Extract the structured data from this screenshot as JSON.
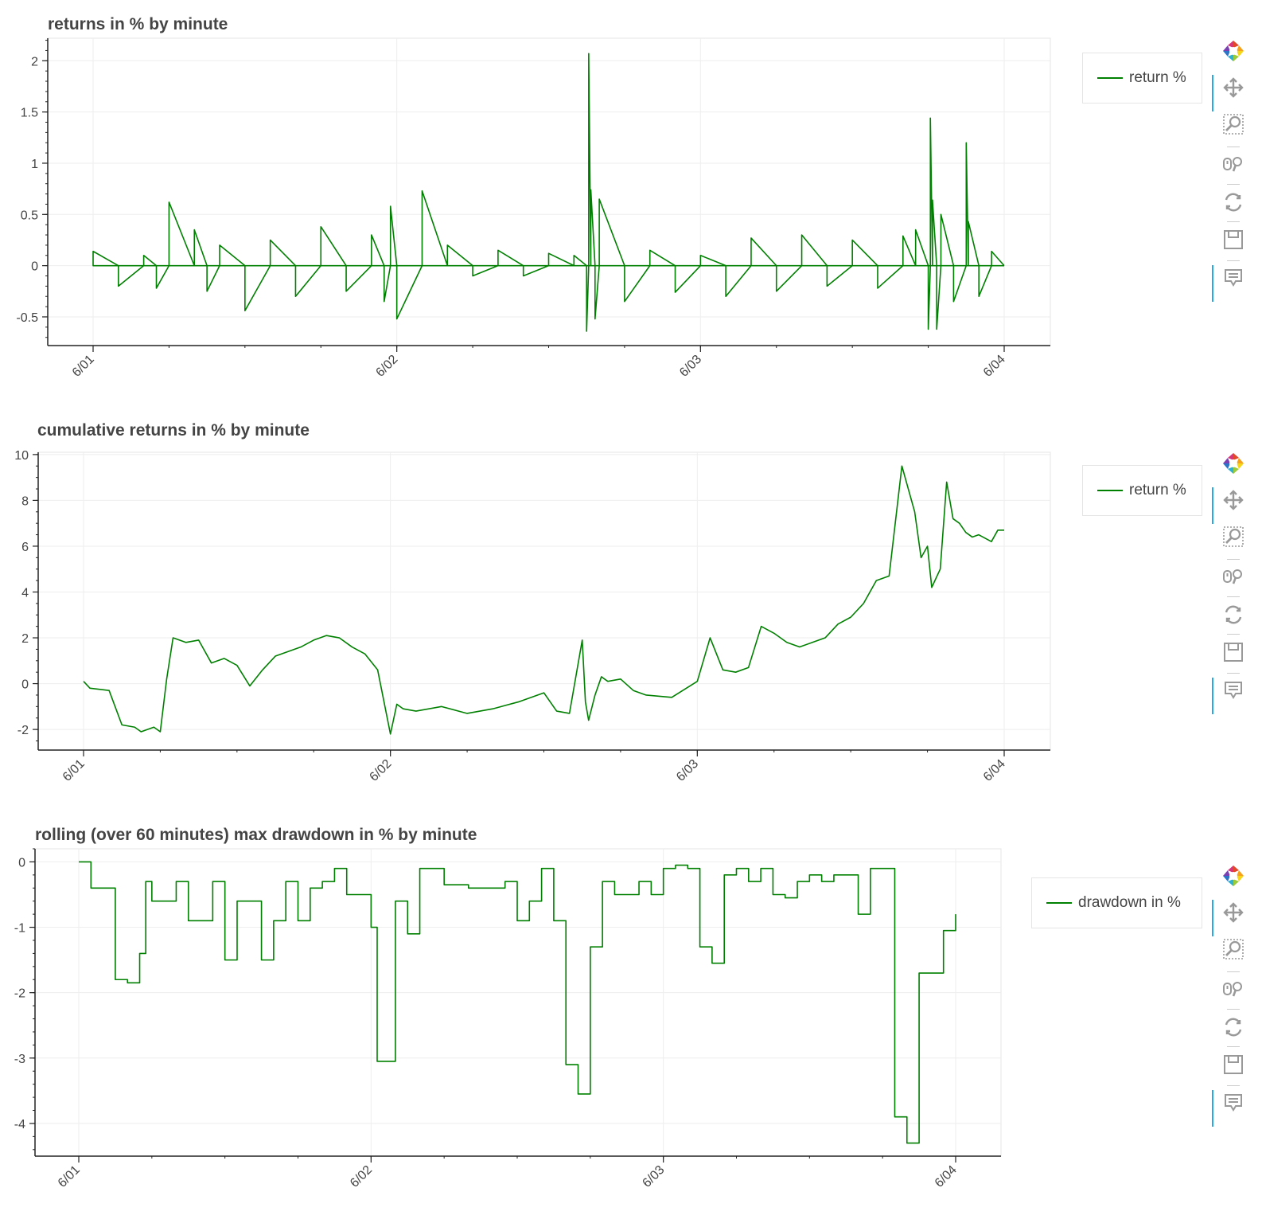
{
  "chart_data": [
    {
      "type": "line",
      "title": "returns in % by minute",
      "xlabel": "",
      "ylabel": "",
      "x_ticks": [
        "6/01",
        "6/02",
        "6/03",
        "6/04"
      ],
      "y_ticks": [
        "2",
        "1.5",
        "1",
        "0.5",
        "0",
        "-0.5"
      ],
      "xlim": [
        "6/01 00:00",
        "6/04 00:00"
      ],
      "ylim": [
        -0.78,
        2.22
      ],
      "grid": true,
      "legend_position": "right",
      "series": [
        {
          "name": "return %",
          "color": "#008000",
          "x": [
            "6/01 00:00",
            "6/01 02:00",
            "6/01 04:00",
            "6/01 05:00",
            "6/01 06:00",
            "6/01 08:00",
            "6/01 09:00",
            "6/01 10:00",
            "6/01 12:00",
            "6/01 14:00",
            "6/01 16:00",
            "6/01 18:00",
            "6/01 20:00",
            "6/01 22:00",
            "6/01 23:00",
            "6/01 23:30",
            "6/02 00:00",
            "6/02 02:00",
            "6/02 04:00",
            "6/02 06:00",
            "6/02 08:00",
            "6/02 10:00",
            "6/02 12:00",
            "6/02 14:00",
            "6/02 15:00",
            "6/02 15:10",
            "6/02 15:20",
            "6/02 15:40",
            "6/02 16:00",
            "6/02 18:00",
            "6/02 20:00",
            "6/02 22:00",
            "6/03 00:00",
            "6/03 02:00",
            "6/03 04:00",
            "6/03 06:00",
            "6/03 08:00",
            "6/03 10:00",
            "6/03 12:00",
            "6/03 14:00",
            "6/03 16:00",
            "6/03 17:00",
            "6/03 18:00",
            "6/03 18:10",
            "6/03 18:20",
            "6/03 18:40",
            "6/03 19:00",
            "6/03 20:00",
            "6/03 21:00",
            "6/03 21:10",
            "6/03 22:00",
            "6/03 23:00",
            "6/04 00:00"
          ],
          "values": [
            0.14,
            -0.2,
            0.1,
            -0.22,
            0.62,
            0.35,
            -0.25,
            0.2,
            -0.44,
            0.25,
            -0.3,
            0.38,
            -0.25,
            0.3,
            -0.35,
            0.58,
            -0.52,
            0.73,
            0.2,
            -0.1,
            0.15,
            -0.1,
            0.12,
            0.1,
            -0.64,
            2.07,
            0.74,
            -0.52,
            0.65,
            -0.35,
            0.15,
            -0.26,
            0.1,
            -0.3,
            0.27,
            -0.25,
            0.3,
            -0.2,
            0.25,
            -0.22,
            0.29,
            0.35,
            -0.62,
            1.44,
            0.64,
            -0.62,
            0.5,
            -0.35,
            1.2,
            0.43,
            -0.3,
            0.14,
            0.0
          ]
        }
      ]
    },
    {
      "type": "line",
      "title": "cumulative returns in % by minute",
      "xlabel": "",
      "ylabel": "",
      "x_ticks": [
        "6/01",
        "6/02",
        "6/03",
        "6/04"
      ],
      "y_ticks": [
        "10",
        "8",
        "6",
        "4",
        "2",
        "0",
        "-2"
      ],
      "xlim": [
        "6/01 00:00",
        "6/04 00:00"
      ],
      "ylim": [
        -2.9,
        10.1
      ],
      "grid": true,
      "legend_position": "right",
      "series": [
        {
          "name": "return %",
          "color": "#008000",
          "x": [
            "6/01 00:00",
            "6/01 00:30",
            "6/01 02:00",
            "6/01 03:00",
            "6/01 04:00",
            "6/01 04:30",
            "6/01 05:30",
            "6/01 06:00",
            "6/01 06:30",
            "6/01 07:00",
            "6/01 08:00",
            "6/01 09:00",
            "6/01 10:00",
            "6/01 11:00",
            "6/01 12:00",
            "6/01 13:00",
            "6/01 14:00",
            "6/01 15:00",
            "6/01 16:00",
            "6/01 17:00",
            "6/01 18:00",
            "6/01 19:00",
            "6/01 20:00",
            "6/01 21:00",
            "6/01 22:00",
            "6/01 23:00",
            "6/01 23:30",
            "6/02 00:00",
            "6/02 00:30",
            "6/02 01:00",
            "6/02 02:00",
            "6/02 04:00",
            "6/02 06:00",
            "6/02 08:00",
            "6/02 10:00",
            "6/02 12:00",
            "6/02 13:00",
            "6/02 14:00",
            "6/02 15:00",
            "6/02 15:15",
            "6/02 15:30",
            "6/02 16:00",
            "6/02 16:30",
            "6/02 17:00",
            "6/02 18:00",
            "6/02 19:00",
            "6/02 20:00",
            "6/02 22:00",
            "6/03 00:00",
            "6/03 01:00",
            "6/03 02:00",
            "6/03 03:00",
            "6/03 04:00",
            "6/03 05:00",
            "6/03 06:00",
            "6/03 07:00",
            "6/03 08:00",
            "6/03 09:00",
            "6/03 10:00",
            "6/03 11:00",
            "6/03 12:00",
            "6/03 13:00",
            "6/03 14:00",
            "6/03 15:00",
            "6/03 16:00",
            "6/03 17:00",
            "6/03 17:30",
            "6/03 18:00",
            "6/03 18:20",
            "6/03 19:00",
            "6/03 19:30",
            "6/03 20:00",
            "6/03 20:30",
            "6/03 21:00",
            "6/03 21:30",
            "6/03 22:00",
            "6/03 23:00",
            "6/03 23:30",
            "6/04 00:00"
          ],
          "values": [
            0.1,
            -0.2,
            -0.3,
            -1.8,
            -1.9,
            -2.1,
            -1.9,
            -2.1,
            0.2,
            2.0,
            1.8,
            1.9,
            0.9,
            1.1,
            0.8,
            -0.1,
            0.6,
            1.2,
            1.4,
            1.6,
            1.9,
            2.1,
            2.0,
            1.6,
            1.3,
            0.6,
            -0.8,
            -2.2,
            -0.9,
            -1.1,
            -1.2,
            -1.0,
            -1.3,
            -1.1,
            -0.8,
            -0.4,
            -1.2,
            -1.3,
            1.9,
            -0.8,
            -1.6,
            -0.5,
            0.3,
            0.1,
            0.2,
            -0.3,
            -0.5,
            -0.6,
            0.1,
            2.0,
            0.6,
            0.5,
            0.7,
            2.5,
            2.2,
            1.8,
            1.6,
            1.8,
            2.0,
            2.6,
            2.9,
            3.5,
            4.5,
            4.7,
            9.5,
            7.5,
            5.5,
            6.0,
            4.2,
            5.0,
            8.8,
            7.2,
            7.0,
            6.6,
            6.4,
            6.5,
            6.2,
            6.7,
            6.7
          ]
        }
      ]
    },
    {
      "type": "line",
      "title": "rolling (over 60 minutes) max drawdown in % by minute",
      "xlabel": "",
      "ylabel": "",
      "x_ticks": [
        "6/01",
        "6/02",
        "6/03",
        "6/04"
      ],
      "y_ticks": [
        "0",
        "-1",
        "-2",
        "-3",
        "-4"
      ],
      "xlim": [
        "6/01 00:00",
        "6/04 00:00"
      ],
      "ylim": [
        -4.5,
        0.2
      ],
      "grid": true,
      "legend_position": "right",
      "series": [
        {
          "name": "drawdown in %",
          "color": "#008000",
          "x": [
            "6/01 00:00",
            "6/01 01:00",
            "6/01 02:00",
            "6/01 03:00",
            "6/01 04:00",
            "6/01 05:00",
            "6/01 05:30",
            "6/01 06:00",
            "6/01 07:00",
            "6/01 08:00",
            "6/01 09:00",
            "6/01 10:00",
            "6/01 11:00",
            "6/01 12:00",
            "6/01 13:00",
            "6/01 14:00",
            "6/01 15:00",
            "6/01 16:00",
            "6/01 17:00",
            "6/01 18:00",
            "6/01 19:00",
            "6/01 20:00",
            "6/01 21:00",
            "6/01 22:00",
            "6/01 23:00",
            "6/02 00:00",
            "6/02 00:30",
            "6/02 01:00",
            "6/02 02:00",
            "6/02 03:00",
            "6/02 04:00",
            "6/02 06:00",
            "6/02 08:00",
            "6/02 10:00",
            "6/02 11:00",
            "6/02 12:00",
            "6/02 13:00",
            "6/02 14:00",
            "6/02 15:00",
            "6/02 16:00",
            "6/02 17:00",
            "6/02 18:00",
            "6/02 19:00",
            "6/02 20:00",
            "6/02 21:00",
            "6/02 22:00",
            "6/02 23:00",
            "6/03 00:00",
            "6/03 01:00",
            "6/03 02:00",
            "6/03 03:00",
            "6/03 04:00",
            "6/03 05:00",
            "6/03 06:00",
            "6/03 07:00",
            "6/03 08:00",
            "6/03 09:00",
            "6/03 10:00",
            "6/03 11:00",
            "6/03 12:00",
            "6/03 13:00",
            "6/03 14:00",
            "6/03 15:00",
            "6/03 16:00",
            "6/03 17:00",
            "6/03 18:00",
            "6/03 19:00",
            "6/03 20:00",
            "6/03 21:00",
            "6/03 22:00",
            "6/03 23:00",
            "6/04 00:00"
          ],
          "values": [
            0.0,
            -0.4,
            -0.4,
            -1.8,
            -1.85,
            -1.4,
            -0.3,
            -0.6,
            -0.6,
            -0.3,
            -0.9,
            -0.9,
            -0.3,
            -1.5,
            -0.6,
            -0.6,
            -1.5,
            -0.9,
            -0.3,
            -0.9,
            -0.4,
            -0.3,
            -0.1,
            -0.5,
            -0.5,
            -1.0,
            -3.05,
            -3.05,
            -0.6,
            -1.1,
            -0.1,
            -0.35,
            -0.4,
            -0.4,
            -0.3,
            -0.9,
            -0.6,
            -0.1,
            -0.9,
            -3.1,
            -3.55,
            -1.3,
            -0.3,
            -0.5,
            -0.5,
            -0.3,
            -0.5,
            -0.1,
            -0.05,
            -0.1,
            -1.3,
            -1.55,
            -0.2,
            -0.1,
            -0.3,
            -0.1,
            -0.5,
            -0.55,
            -0.3,
            -0.2,
            -0.3,
            -0.2,
            -0.2,
            -0.8,
            -0.1,
            -0.1,
            -3.9,
            -4.3,
            -1.7,
            -1.7,
            -1.05,
            -0.8
          ]
        }
      ]
    }
  ],
  "toolbar": {
    "tools": [
      {
        "name": "bokeh-logo",
        "active": false
      },
      {
        "name": "pan-icon",
        "active": true
      },
      {
        "name": "box-zoom-icon",
        "active": false
      },
      {
        "name": "wheel-zoom-icon",
        "active": false
      },
      {
        "name": "reset-icon",
        "active": false
      },
      {
        "name": "save-icon",
        "active": false
      },
      {
        "name": "hover-icon",
        "active": true
      }
    ],
    "accent_color": "#26aae1"
  }
}
